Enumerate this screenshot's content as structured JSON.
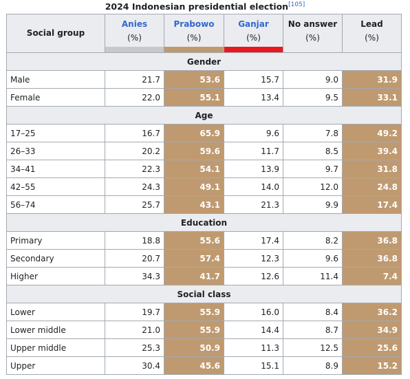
{
  "caption": {
    "title": "2024 Indonesian presidential election",
    "ref": "[105]"
  },
  "table": {
    "columns": [
      {
        "name": "Social group"
      },
      {
        "name": "Anies",
        "unit": "(%)",
        "color": "#c8c8c8"
      },
      {
        "name": "Prabowo",
        "unit": "(%)",
        "color": "#bf9a70"
      },
      {
        "name": "Ganjar",
        "unit": "(%)",
        "color": "#e8191e"
      },
      {
        "name": "No answer",
        "unit": "(%)"
      },
      {
        "name": "Lead",
        "unit": "(%)"
      }
    ],
    "sections": [
      {
        "title": "Gender",
        "rows": [
          [
            "Male",
            "21.7",
            "53.6",
            "15.7",
            "9.0",
            "31.9"
          ],
          [
            "Female",
            "22.0",
            "55.1",
            "13.4",
            "9.5",
            "33.1"
          ]
        ]
      },
      {
        "title": "Age",
        "rows": [
          [
            "17–25",
            "16.7",
            "65.9",
            "9.6",
            "7.8",
            "49.2"
          ],
          [
            "26–33",
            "20.2",
            "59.6",
            "11.7",
            "8.5",
            "39.4"
          ],
          [
            "34–41",
            "22.3",
            "54.1",
            "13.9",
            "9.7",
            "31.8"
          ],
          [
            "42–55",
            "24.3",
            "49.1",
            "14.0",
            "12.0",
            "24.8"
          ],
          [
            "56–74",
            "25.7",
            "43.1",
            "21.3",
            "9.9",
            "17.4"
          ]
        ]
      },
      {
        "title": "Education",
        "rows": [
          [
            "Primary",
            "18.8",
            "55.6",
            "17.4",
            "8.2",
            "36.8"
          ],
          [
            "Secondary",
            "20.7",
            "57.4",
            "12.3",
            "9.6",
            "36.8"
          ],
          [
            "Higher",
            "34.3",
            "41.7",
            "12.6",
            "11.4",
            "7.4"
          ]
        ]
      },
      {
        "title": "Social class",
        "rows": [
          [
            "Lower",
            "19.7",
            "55.9",
            "16.0",
            "8.4",
            "36.2"
          ],
          [
            "Lower middle",
            "21.0",
            "55.9",
            "14.4",
            "8.7",
            "34.9"
          ],
          [
            "Upper middle",
            "25.3",
            "50.9",
            "11.3",
            "12.5",
            "25.6"
          ],
          [
            "Upper",
            "30.4",
            "45.6",
            "15.1",
            "8.9",
            "15.2"
          ]
        ]
      }
    ]
  }
}
